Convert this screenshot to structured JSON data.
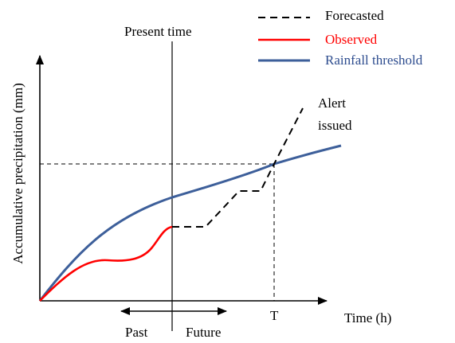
{
  "legend": {
    "items": [
      {
        "label": "Forecasted",
        "line_style": "dashed",
        "color": "#000000"
      },
      {
        "label": "Observed",
        "line_style": "solid",
        "color": "#ff0000"
      },
      {
        "label": "Rainfall threshold",
        "line_style": "solid",
        "color": "#3d5f9a"
      }
    ]
  },
  "axes": {
    "y_label": "Accumulative precipitation (mm)",
    "x_label": "Time (h)",
    "t_marker": "T"
  },
  "annotations": {
    "present_time": "Present time",
    "alert_line1": "Alert",
    "alert_line2": "issued",
    "past": "Past",
    "future": "Future"
  },
  "colors": {
    "threshold": "#3d5f9a",
    "observed": "#ff0000",
    "forecast": "#000000",
    "axis": "#000000"
  }
}
